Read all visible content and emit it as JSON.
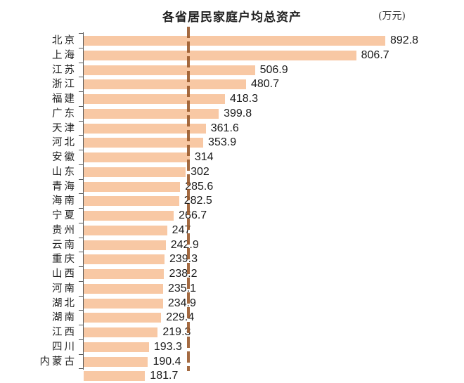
{
  "chart": {
    "title": "各省居民家庭户均总资产",
    "unit": "(万元)"
  },
  "chart_data": {
    "type": "bar",
    "orientation": "horizontal",
    "title": "各省居民家庭户均总资产",
    "xlabel": "",
    "ylabel": "",
    "unit": "万元",
    "categories": [
      "北京",
      "上海",
      "江苏",
      "浙江",
      "福建",
      "广东",
      "天津",
      "河北",
      "安徽",
      "山东",
      "青海",
      "海南",
      "宁夏",
      "贵州",
      "云南",
      "重庆",
      "山西",
      "河南",
      "湖北",
      "湖南",
      "江西",
      "四川",
      "内蒙古"
    ],
    "values": [
      892.8,
      806.7,
      506.9,
      480.7,
      418.3,
      399.8,
      361.6,
      353.9,
      314,
      302,
      285.6,
      282.5,
      266.7,
      247,
      242.9,
      239.3,
      238.2,
      235.1,
      234.9,
      229.4,
      219.3,
      193.3,
      190.4
    ],
    "value_labels": [
      "892.8",
      "806.7",
      "506.9",
      "480.7",
      "418.3",
      "399.8",
      "361.6",
      "353.9",
      "314",
      "302",
      "285.6",
      "282.5",
      "266.7",
      "247",
      "242.9",
      "239.3",
      "238.2",
      "235.1",
      "234.9",
      "229.4",
      "219.3",
      "193.3",
      "190.4"
    ],
    "truncated_last_row": {
      "label_partial": "",
      "value_partial": "181.7"
    },
    "reference_line": {
      "style": "dashed",
      "color": "#9a5a2c",
      "approx_value": 310
    },
    "bar_color": "#f8c8a4",
    "grid": false,
    "legend": null
  }
}
